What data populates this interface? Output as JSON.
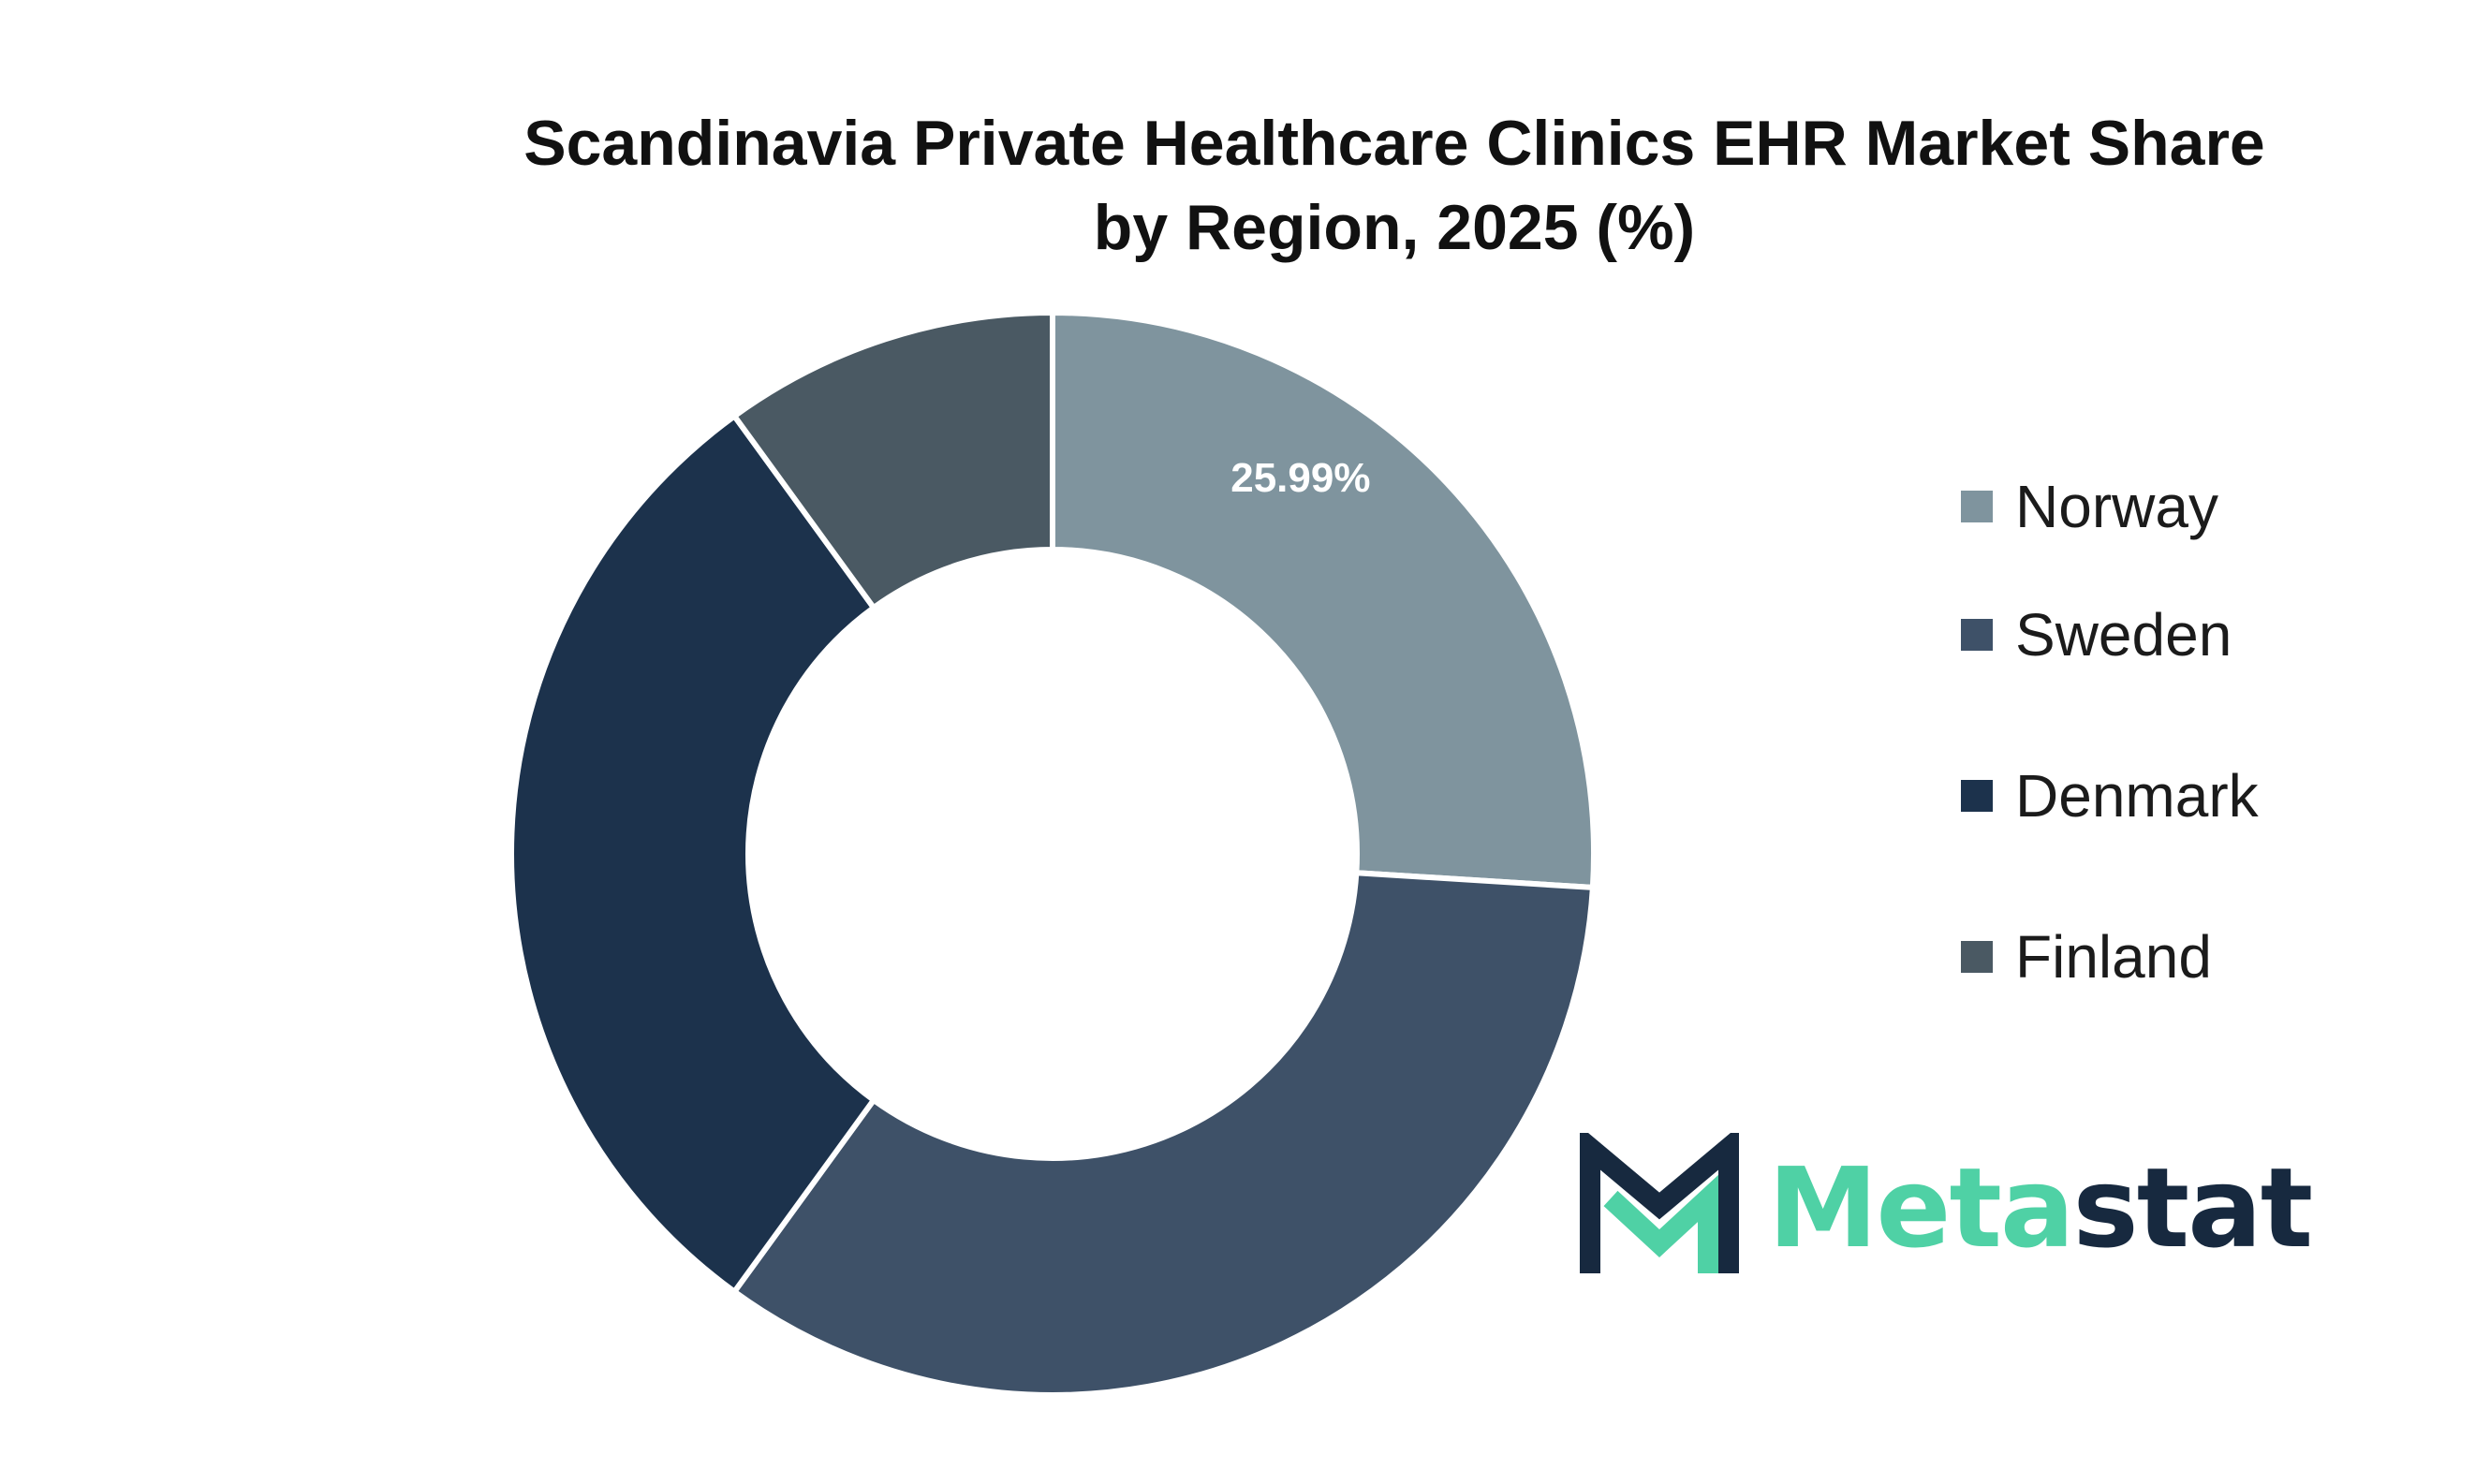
{
  "chart_data": {
    "type": "donut",
    "title": [
      "Scandinavia Private Healthcare Clinics EHR Market Share",
      "by Region, 2025 (%)"
    ],
    "series": [
      {
        "name": "Norway",
        "value": 25.99,
        "color": "#7f949e",
        "label": "25.99%"
      },
      {
        "name": "Sweden",
        "value": 34.01,
        "color": "#3e5168"
      },
      {
        "name": "Denmark",
        "value": 30.0,
        "color": "#1c324c"
      },
      {
        "name": "Finland",
        "value": 10.0,
        "color": "#4a5963"
      }
    ],
    "legend_position": "right"
  },
  "branding": {
    "logo_accent": "Meta",
    "logo_rest": "stat",
    "accent_color": "#4fd1a5",
    "dark_color": "#17293f"
  }
}
